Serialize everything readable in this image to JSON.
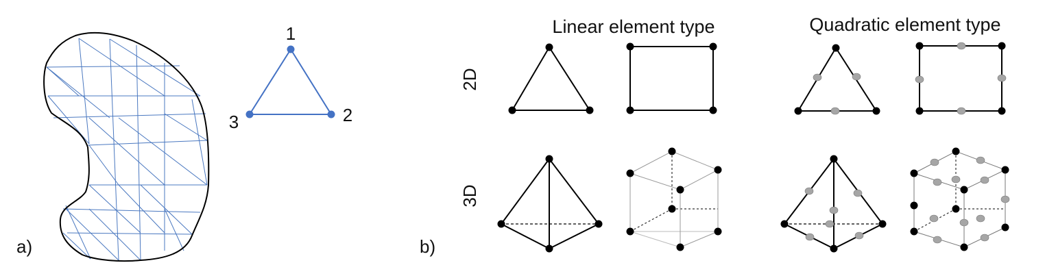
{
  "panel_a": {
    "label": "a)",
    "node_labels": [
      "1",
      "2",
      "3"
    ],
    "mesh_color": "#4a78c0",
    "node_color": "#4472c4",
    "outline_color": "#000000"
  },
  "panel_b": {
    "label": "b)",
    "column_headers": {
      "linear": "Linear element type",
      "quadratic": "Quadratic element type"
    },
    "row_labels": [
      "2D",
      "3D"
    ],
    "corner_node_color": "#000000",
    "midside_node_color": "#a6a6a6"
  }
}
